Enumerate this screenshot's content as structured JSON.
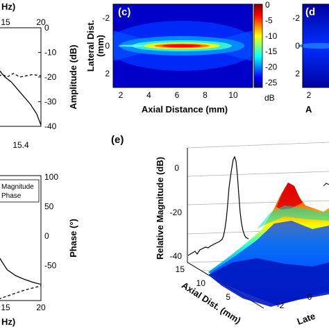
{
  "panel_a": {
    "x_label_fragment": "Hz)",
    "top_ticks": [
      "15",
      "20"
    ],
    "bottom_tick": "15.4",
    "y_label": "Amplitude (dB)",
    "y_ticks": [
      "0",
      "-10",
      "-20",
      "-30",
      "-40"
    ]
  },
  "panel_b": {
    "y_label": "Phase (°)",
    "y_ticks": [
      "100",
      "50",
      "0",
      "-50"
    ],
    "x_ticks": [
      "15",
      "20"
    ],
    "x_label_fragment": "Hz)",
    "legend": {
      "items": [
        "Magnitude",
        "Phase"
      ]
    }
  },
  "panel_c": {
    "tag": "(c)",
    "y_label": "Lateral Dist.",
    "y_label_unit": "(mm)",
    "x_label": "Axial Distance (mm)",
    "x_ticks": [
      "2",
      "4",
      "6",
      "8",
      "10"
    ],
    "y_ticks": [
      "-2",
      "0",
      "2"
    ],
    "colorbar_ticks": [
      "0",
      "-5",
      "-10",
      "-15",
      "-20",
      "-25"
    ],
    "colorbar_unit": "dB"
  },
  "panel_d": {
    "tag": "(d",
    "y_ticks": [
      "-2",
      "0",
      "2"
    ],
    "x_tick": "2",
    "x_label_fragment": "A"
  },
  "panel_e": {
    "tag": "(e)",
    "z_label": "Relative Magnitude (dB)",
    "z_ticks": [
      "0",
      "-20",
      "-40"
    ],
    "axial_label": "Axial Dist. (mm)",
    "axial_ticks": [
      "15",
      "10",
      "5"
    ],
    "lateral_label": "Late",
    "lateral_ticks": [
      "-2",
      "0"
    ]
  },
  "chart_data": [
    {
      "type": "line",
      "panel": "a",
      "ylabel": "Amplitude (dB)",
      "ylim": [
        -40,
        0
      ],
      "series": [
        {
          "name": "solid",
          "style": "solid",
          "x": [
            0,
            0.15,
            0.3,
            0.45,
            0.6,
            0.75,
            0.9,
            1.0
          ],
          "y": [
            -17,
            -20,
            -22,
            -25,
            -28,
            -31,
            -35,
            -39.5
          ]
        },
        {
          "name": "dashed",
          "style": "dashed",
          "x": [
            0,
            0.1,
            0.2,
            0.35,
            0.5,
            0.65,
            0.8,
            1.0
          ],
          "y": [
            -19.5,
            -19,
            -20,
            -18.5,
            -20,
            -19.5,
            -19,
            -19.5
          ]
        }
      ]
    },
    {
      "type": "line",
      "panel": "b",
      "ylabel": "Phase (°)",
      "ylim": [
        -70,
        100
      ],
      "legend": [
        "Magnitude",
        "Phase"
      ],
      "series": [
        {
          "name": "Magnitude",
          "style": "solid",
          "x": [
            0,
            0.2,
            0.4,
            0.6,
            0.8,
            1.0
          ],
          "y": [
            -10,
            -28,
            -36,
            -41,
            -45,
            -48
          ]
        },
        {
          "name": "Phase",
          "style": "dashed",
          "x": [
            0,
            0.2,
            0.4,
            0.6,
            0.8,
            1.0
          ],
          "y": [
            -68,
            -64,
            -60,
            -56,
            -53,
            -50
          ]
        }
      ]
    },
    {
      "type": "heatmap",
      "panel": "c",
      "xlabel": "Axial Distance (mm)",
      "ylabel": "Lateral Dist. (mm)",
      "xlim": [
        1,
        11
      ],
      "ylim": [
        -3,
        3
      ],
      "zlim": [
        -25,
        0
      ],
      "colorbar_unit": "dB",
      "focus": {
        "x": 6.2,
        "y": 0,
        "value": 0
      }
    },
    {
      "type": "area",
      "panel": "e",
      "zlabel": "Relative Magnitude (dB)",
      "zlim": [
        -40,
        0
      ],
      "peak_value": 0
    }
  ]
}
